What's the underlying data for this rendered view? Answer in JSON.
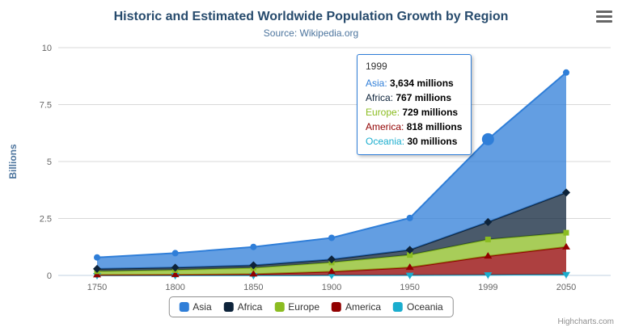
{
  "header": {
    "title": "Historic and Estimated Worldwide Population Growth by Region",
    "subtitle": "Source: Wikipedia.org"
  },
  "credits": "Highcharts.com",
  "tooltip": {
    "header": "1999",
    "value_suffix": " millions",
    "rows": [
      {
        "series": "Asia",
        "value": "3,634"
      },
      {
        "series": "Africa",
        "value": "767"
      },
      {
        "series": "Europe",
        "value": "729"
      },
      {
        "series": "America",
        "value": "818"
      },
      {
        "series": "Oceania",
        "value": "30"
      }
    ]
  },
  "chart_data": {
    "type": "area",
    "stacking": "normal",
    "title": "Historic and Estimated Worldwide Population Growth by Region",
    "subtitle": "Source: Wikipedia.org",
    "categories": [
      "1750",
      "1800",
      "1850",
      "1900",
      "1950",
      "1999",
      "2050"
    ],
    "xlabel": "",
    "ylabel": "Billions",
    "ylim": [
      0,
      10
    ],
    "yticks": [
      0,
      2.5,
      5,
      7.5,
      10
    ],
    "values_unit": "millions",
    "grid": true,
    "legend_position": "bottom",
    "series": [
      {
        "name": "Asia",
        "color": "#2f7ed8",
        "marker": "circle",
        "values": [
          502,
          635,
          809,
          947,
          1402,
          3634,
          5268
        ]
      },
      {
        "name": "Africa",
        "color": "#0d233a",
        "marker": "diamond",
        "values": [
          106,
          107,
          111,
          133,
          221,
          767,
          1766
        ]
      },
      {
        "name": "Europe",
        "color": "#8bbc21",
        "marker": "square",
        "values": [
          163,
          203,
          276,
          408,
          547,
          729,
          628
        ]
      },
      {
        "name": "America",
        "color": "#910000",
        "marker": "triangle",
        "values": [
          18,
          31,
          54,
          156,
          339,
          818,
          1201
        ]
      },
      {
        "name": "Oceania",
        "color": "#1aadce",
        "marker": "triangle-down",
        "values": [
          2,
          2,
          2,
          6,
          13,
          30,
          46
        ]
      }
    ],
    "hover": {
      "category": "1999",
      "series": "Asia"
    }
  }
}
